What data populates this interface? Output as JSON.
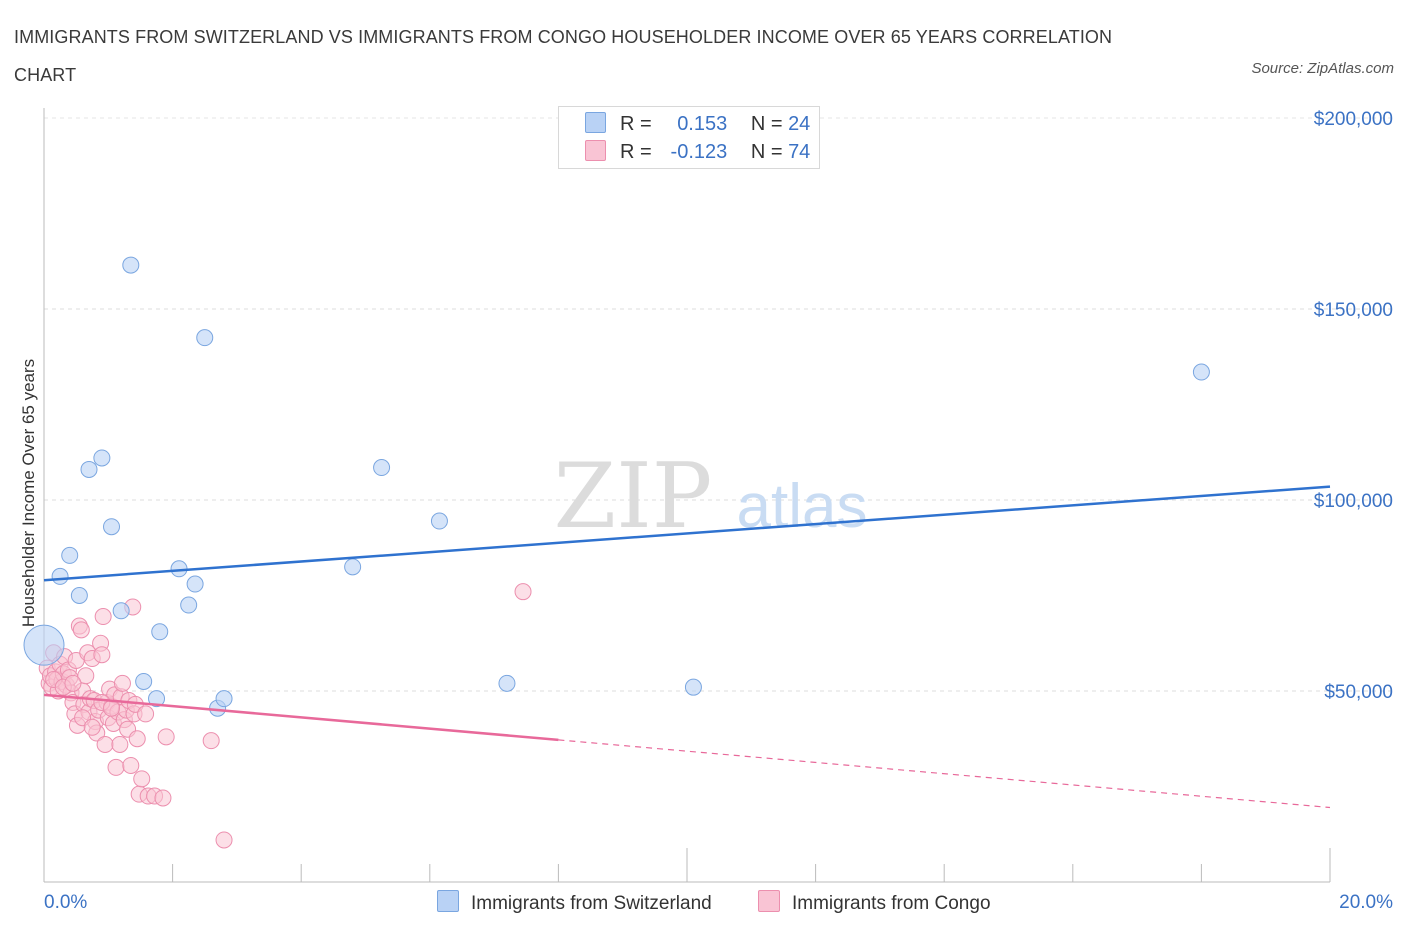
{
  "title": "IMMIGRANTS FROM SWITZERLAND VS IMMIGRANTS FROM CONGO HOUSEHOLDER INCOME OVER 65 YEARS CORRELATION CHART",
  "source": "Source: ZipAtlas.com",
  "watermark": {
    "zip": "ZIP",
    "atlas": "atlas"
  },
  "colors": {
    "blue_fill": "#b9d2f5",
    "blue_stroke": "#7aa6e0",
    "blue_line": "#2f72cf",
    "pink_fill": "#f9c4d4",
    "pink_stroke": "#ec8fae",
    "pink_line": "#e8699a",
    "axis_text": "#3b72c4"
  },
  "legend": {
    "rows": [
      {
        "r_label": "R =",
        "r_value": "0.153",
        "n_label": "N =",
        "n_value": "24"
      },
      {
        "r_label": "R =",
        "r_value": "-0.123",
        "n_label": "N =",
        "n_value": "74"
      }
    ]
  },
  "bottom_legend": [
    "Immigrants from Switzerland",
    "Immigrants from Congo"
  ],
  "chart_data": {
    "type": "scatter",
    "title": "IMMIGRANTS FROM SWITZERLAND VS IMMIGRANTS FROM CONGO HOUSEHOLDER INCOME OVER 65 YEARS CORRELATION CHART",
    "xlabel": "",
    "ylabel": "Householder Income Over 65 years",
    "xlim": [
      0,
      20
    ],
    "ylim": [
      0,
      200000
    ],
    "x_tick_labels": [
      "0.0%",
      "20.0%"
    ],
    "y_ticks": [
      50000,
      100000,
      150000,
      200000
    ],
    "y_tick_labels": [
      "$50,000",
      "$100,000",
      "$150,000",
      "$200,000"
    ],
    "grid": true,
    "legend_position": "top-center",
    "series": [
      {
        "name": "Immigrants from Switzerland",
        "color": "blue",
        "R": 0.153,
        "N": 24,
        "trend": {
          "x": [
            0,
            20
          ],
          "y": [
            79000,
            103500
          ],
          "dashed_from": null
        },
        "points": [
          {
            "x": 0.0,
            "y": 62000,
            "big": true
          },
          {
            "x": 0.25,
            "y": 80000
          },
          {
            "x": 0.4,
            "y": 85500
          },
          {
            "x": 0.55,
            "y": 75000
          },
          {
            "x": 0.7,
            "y": 108000
          },
          {
            "x": 0.9,
            "y": 111000
          },
          {
            "x": 1.05,
            "y": 93000
          },
          {
            "x": 1.2,
            "y": 71000
          },
          {
            "x": 1.35,
            "y": 161500
          },
          {
            "x": 1.55,
            "y": 52500
          },
          {
            "x": 1.75,
            "y": 48000
          },
          {
            "x": 1.8,
            "y": 65500
          },
          {
            "x": 2.1,
            "y": 82000
          },
          {
            "x": 2.25,
            "y": 72500
          },
          {
            "x": 2.35,
            "y": 78000
          },
          {
            "x": 2.5,
            "y": 142500
          },
          {
            "x": 2.7,
            "y": 45500
          },
          {
            "x": 2.8,
            "y": 48000
          },
          {
            "x": 4.8,
            "y": 82500
          },
          {
            "x": 5.25,
            "y": 108500
          },
          {
            "x": 6.15,
            "y": 94500
          },
          {
            "x": 7.2,
            "y": 52000
          },
          {
            "x": 10.1,
            "y": 51000
          },
          {
            "x": 18.0,
            "y": 133500
          }
        ]
      },
      {
        "name": "Immigrants from Congo",
        "color": "pink",
        "R": -0.123,
        "N": 74,
        "trend": {
          "x": [
            0,
            20
          ],
          "y": [
            49000,
            19500
          ],
          "dashed_from": 8.0
        },
        "points": [
          {
            "x": 0.05,
            "y": 56000
          },
          {
            "x": 0.08,
            "y": 52000
          },
          {
            "x": 0.1,
            "y": 54000
          },
          {
            "x": 0.12,
            "y": 51000
          },
          {
            "x": 0.15,
            "y": 60000
          },
          {
            "x": 0.18,
            "y": 55000
          },
          {
            "x": 0.2,
            "y": 53000
          },
          {
            "x": 0.22,
            "y": 50000
          },
          {
            "x": 0.25,
            "y": 57000
          },
          {
            "x": 0.28,
            "y": 52500
          },
          {
            "x": 0.3,
            "y": 54500
          },
          {
            "x": 0.32,
            "y": 59000
          },
          {
            "x": 0.35,
            "y": 51500
          },
          {
            "x": 0.38,
            "y": 55500
          },
          {
            "x": 0.4,
            "y": 53500
          },
          {
            "x": 0.42,
            "y": 49500
          },
          {
            "x": 0.45,
            "y": 47000
          },
          {
            "x": 0.48,
            "y": 44000
          },
          {
            "x": 0.5,
            "y": 58000
          },
          {
            "x": 0.52,
            "y": 41000
          },
          {
            "x": 0.55,
            "y": 67000
          },
          {
            "x": 0.58,
            "y": 66000
          },
          {
            "x": 0.6,
            "y": 50000
          },
          {
            "x": 0.62,
            "y": 46500
          },
          {
            "x": 0.65,
            "y": 54000
          },
          {
            "x": 0.68,
            "y": 60000
          },
          {
            "x": 0.7,
            "y": 44500
          },
          {
            "x": 0.72,
            "y": 48000
          },
          {
            "x": 0.75,
            "y": 58500
          },
          {
            "x": 0.78,
            "y": 47500
          },
          {
            "x": 0.8,
            "y": 42000
          },
          {
            "x": 0.82,
            "y": 39000
          },
          {
            "x": 0.85,
            "y": 45000
          },
          {
            "x": 0.88,
            "y": 62500
          },
          {
            "x": 0.9,
            "y": 59500
          },
          {
            "x": 0.92,
            "y": 69500
          },
          {
            "x": 0.95,
            "y": 36000
          },
          {
            "x": 0.98,
            "y": 47000
          },
          {
            "x": 1.0,
            "y": 43000
          },
          {
            "x": 1.02,
            "y": 50500
          },
          {
            "x": 1.05,
            "y": 46000
          },
          {
            "x": 1.08,
            "y": 41500
          },
          {
            "x": 1.1,
            "y": 49000
          },
          {
            "x": 1.12,
            "y": 30000
          },
          {
            "x": 1.15,
            "y": 44500
          },
          {
            "x": 1.18,
            "y": 36000
          },
          {
            "x": 1.2,
            "y": 48500
          },
          {
            "x": 1.22,
            "y": 52000
          },
          {
            "x": 1.25,
            "y": 42500
          },
          {
            "x": 1.28,
            "y": 45000
          },
          {
            "x": 1.3,
            "y": 40000
          },
          {
            "x": 1.32,
            "y": 47500
          },
          {
            "x": 1.35,
            "y": 30500
          },
          {
            "x": 1.38,
            "y": 72000
          },
          {
            "x": 1.4,
            "y": 44000
          },
          {
            "x": 1.42,
            "y": 46500
          },
          {
            "x": 1.45,
            "y": 37500
          },
          {
            "x": 1.48,
            "y": 23000
          },
          {
            "x": 1.52,
            "y": 27000
          },
          {
            "x": 1.58,
            "y": 44000
          },
          {
            "x": 1.62,
            "y": 22500
          },
          {
            "x": 1.72,
            "y": 22500
          },
          {
            "x": 1.85,
            "y": 22000
          },
          {
            "x": 1.9,
            "y": 38000
          },
          {
            "x": 2.6,
            "y": 37000
          },
          {
            "x": 2.8,
            "y": 11000
          },
          {
            "x": 7.45,
            "y": 76000
          },
          {
            "x": 0.15,
            "y": 53000
          },
          {
            "x": 0.3,
            "y": 51000
          },
          {
            "x": 0.45,
            "y": 52000
          },
          {
            "x": 0.6,
            "y": 43000
          },
          {
            "x": 0.75,
            "y": 40500
          },
          {
            "x": 0.9,
            "y": 47000
          },
          {
            "x": 1.05,
            "y": 45500
          }
        ]
      }
    ]
  }
}
